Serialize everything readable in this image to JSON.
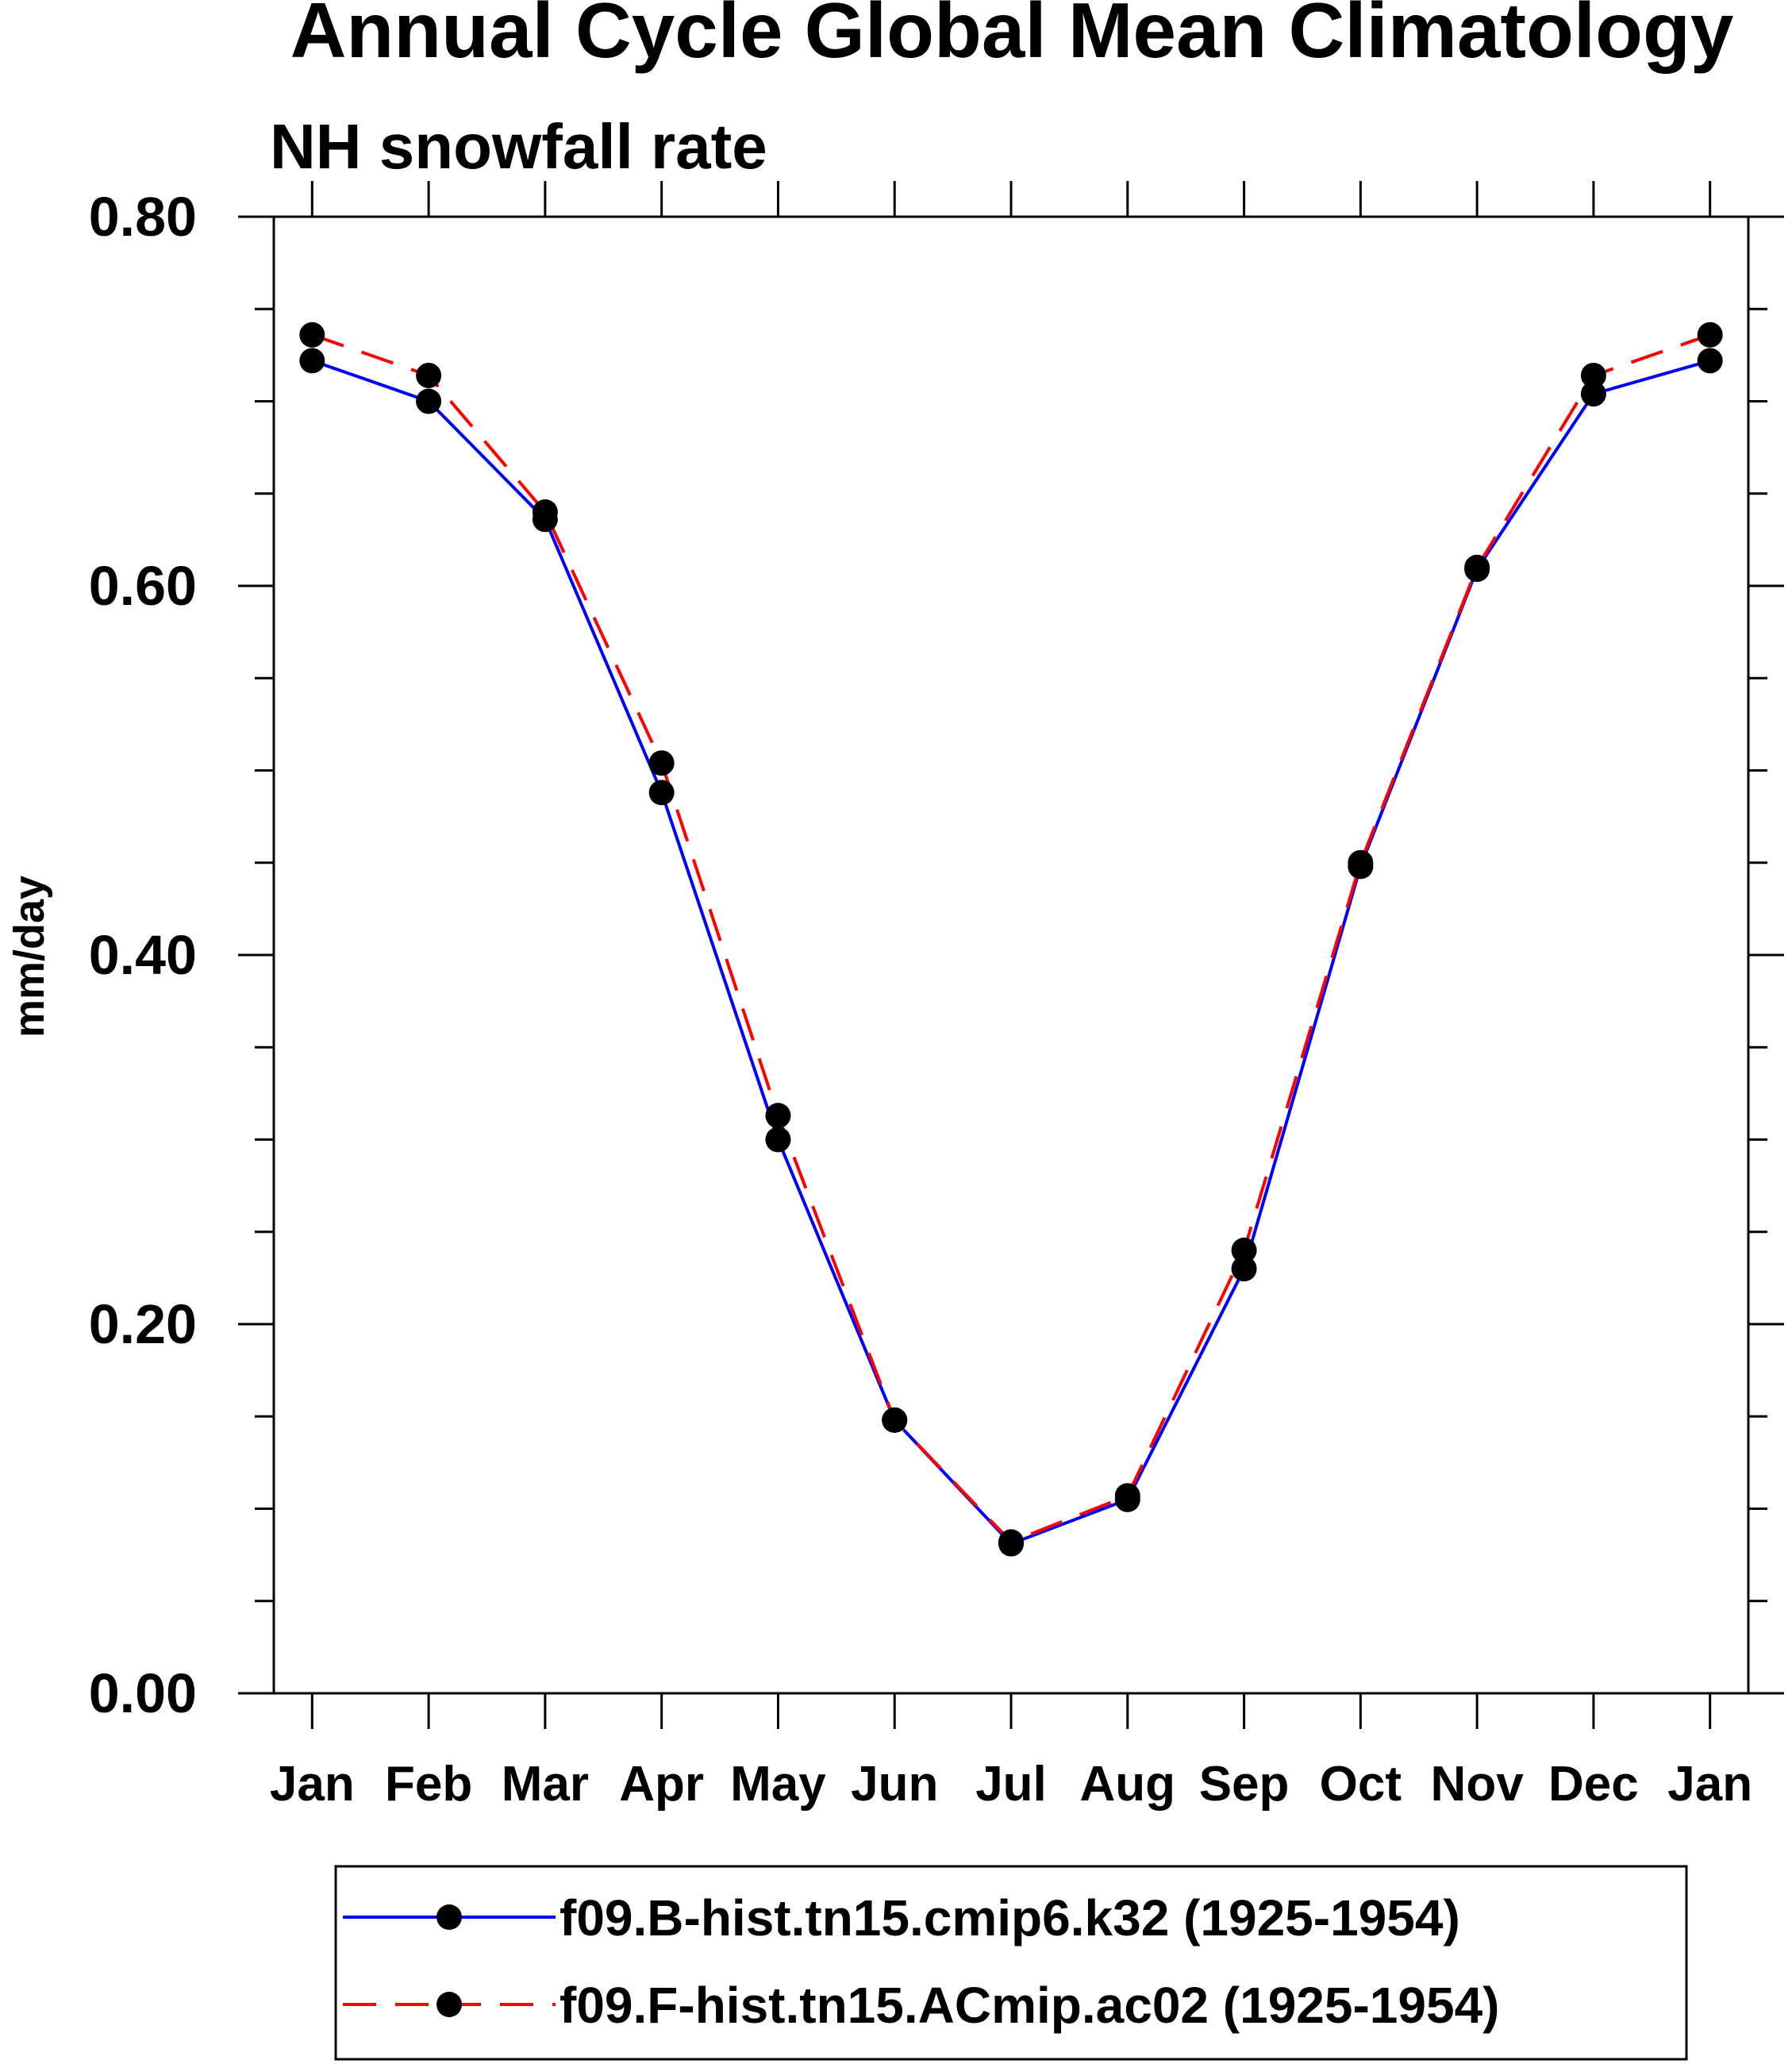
{
  "chart_data": {
    "type": "line",
    "title": "Annual Cycle Global Mean Climatology",
    "subtitle": "NH snowfall rate",
    "xlabel": "",
    "ylabel": "mm/day",
    "categories": [
      "Jan",
      "Feb",
      "Mar",
      "Apr",
      "May",
      "Jun",
      "Jul",
      "Aug",
      "Sep",
      "Oct",
      "Nov",
      "Dec",
      "Jan"
    ],
    "ylim": [
      0,
      0.8
    ],
    "yticks": [
      0.0,
      0.2,
      0.4,
      0.6,
      0.8
    ],
    "ytick_labels": [
      "0.00",
      "0.20",
      "0.40",
      "0.60",
      "0.80"
    ],
    "grid": false,
    "legend_position": "bottom",
    "series": [
      {
        "name": "f09.B-hist.tn15.cmip6.k32 (1925-1954)",
        "color": "#0000ff",
        "line_style": "solid",
        "marker": "filled-circle",
        "values": [
          0.722,
          0.7,
          0.636,
          0.488,
          0.3,
          0.148,
          0.081,
          0.105,
          0.23,
          0.448,
          0.609,
          0.704,
          0.722
        ]
      },
      {
        "name": "f09.F-hist.tn15.ACmip.ac02 (1925-1954)",
        "color": "#ff0000",
        "line_style": "dashed",
        "marker": "filled-circle",
        "values": [
          0.736,
          0.714,
          0.64,
          0.504,
          0.313,
          0.148,
          0.082,
          0.107,
          0.24,
          0.45,
          0.61,
          0.714,
          0.736
        ]
      }
    ]
  }
}
